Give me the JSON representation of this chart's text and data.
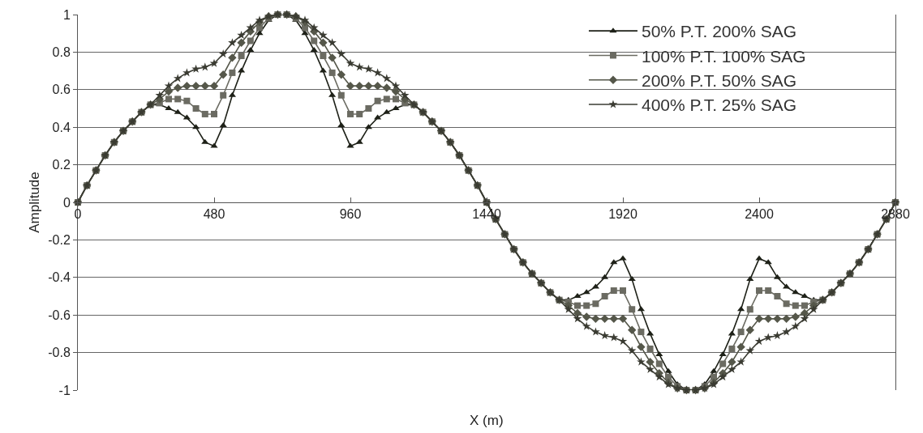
{
  "chart_data": {
    "type": "line",
    "xlabel": "X (m)",
    "ylabel": "Amplitude",
    "x": [
      0,
      32,
      64,
      96,
      128,
      160,
      192,
      224,
      256,
      288,
      320,
      352,
      384,
      416,
      448,
      480,
      512,
      544,
      576,
      608,
      640,
      672,
      704,
      736,
      768,
      800,
      832,
      864,
      896,
      928,
      960,
      992,
      1024,
      1056,
      1088,
      1120,
      1152,
      1184,
      1216,
      1248,
      1280,
      1312,
      1344,
      1376,
      1408,
      1440,
      1472,
      1504,
      1536,
      1568,
      1600,
      1632,
      1664,
      1696,
      1728,
      1760,
      1792,
      1824,
      1856,
      1888,
      1920,
      1952,
      1984,
      2016,
      2048,
      2080,
      2112,
      2144,
      2176,
      2208,
      2240,
      2272,
      2304,
      2336,
      2368,
      2400,
      2432,
      2464,
      2496,
      2528,
      2560,
      2592,
      2624,
      2656,
      2688,
      2720,
      2752,
      2784,
      2816,
      2848,
      2880
    ],
    "series": [
      {
        "name": "50% P.T. 200% SAG",
        "color": "#1e2118",
        "marker": "triangle",
        "values": [
          0,
          0.09,
          0.17,
          0.25,
          0.32,
          0.38,
          0.43,
          0.48,
          0.52,
          0.52,
          0.5,
          0.48,
          0.45,
          0.4,
          0.32,
          0.3,
          0.41,
          0.57,
          0.7,
          0.81,
          0.9,
          0.97,
          1.0,
          1.0,
          0.97,
          0.9,
          0.81,
          0.7,
          0.57,
          0.41,
          0.3,
          0.32,
          0.4,
          0.45,
          0.48,
          0.5,
          0.52,
          0.52,
          0.48,
          0.43,
          0.38,
          0.32,
          0.25,
          0.17,
          0.09,
          0,
          -0.09,
          -0.17,
          -0.25,
          -0.32,
          -0.38,
          -0.43,
          -0.48,
          -0.52,
          -0.52,
          -0.5,
          -0.48,
          -0.45,
          -0.4,
          -0.32,
          -0.3,
          -0.41,
          -0.57,
          -0.7,
          -0.81,
          -0.9,
          -0.97,
          -1.0,
          -1.0,
          -0.97,
          -0.9,
          -0.81,
          -0.7,
          -0.57,
          -0.41,
          -0.3,
          -0.32,
          -0.4,
          -0.45,
          -0.48,
          -0.5,
          -0.52,
          -0.52,
          -0.48,
          -0.43,
          -0.38,
          -0.32,
          -0.25,
          -0.17,
          -0.09,
          0
        ]
      },
      {
        "name": "100% P.T. 100% SAG",
        "color": "#6b6b62",
        "marker": "square",
        "values": [
          0,
          0.09,
          0.17,
          0.25,
          0.32,
          0.38,
          0.43,
          0.48,
          0.52,
          0.53,
          0.55,
          0.55,
          0.54,
          0.5,
          0.47,
          0.47,
          0.57,
          0.69,
          0.78,
          0.86,
          0.93,
          0.98,
          1.0,
          1.0,
          0.98,
          0.93,
          0.86,
          0.78,
          0.69,
          0.57,
          0.47,
          0.47,
          0.5,
          0.54,
          0.55,
          0.55,
          0.53,
          0.52,
          0.48,
          0.43,
          0.38,
          0.32,
          0.25,
          0.17,
          0.09,
          0,
          -0.09,
          -0.17,
          -0.25,
          -0.32,
          -0.38,
          -0.43,
          -0.48,
          -0.52,
          -0.53,
          -0.55,
          -0.55,
          -0.54,
          -0.5,
          -0.47,
          -0.47,
          -0.57,
          -0.69,
          -0.78,
          -0.86,
          -0.93,
          -0.98,
          -1.0,
          -1.0,
          -0.98,
          -0.93,
          -0.86,
          -0.78,
          -0.69,
          -0.57,
          -0.47,
          -0.47,
          -0.5,
          -0.54,
          -0.55,
          -0.55,
          -0.53,
          -0.52,
          -0.48,
          -0.43,
          -0.38,
          -0.32,
          -0.25,
          -0.17,
          -0.09,
          0
        ]
      },
      {
        "name": "200% P.T. 50% SAG",
        "color": "#55574a",
        "marker": "diamond",
        "values": [
          0,
          0.09,
          0.17,
          0.25,
          0.32,
          0.38,
          0.43,
          0.48,
          0.52,
          0.55,
          0.59,
          0.61,
          0.62,
          0.62,
          0.62,
          0.62,
          0.68,
          0.77,
          0.85,
          0.91,
          0.96,
          0.99,
          1.0,
          1.0,
          0.99,
          0.96,
          0.91,
          0.85,
          0.77,
          0.68,
          0.62,
          0.62,
          0.62,
          0.62,
          0.61,
          0.59,
          0.55,
          0.52,
          0.48,
          0.43,
          0.38,
          0.32,
          0.25,
          0.17,
          0.09,
          0,
          -0.09,
          -0.17,
          -0.25,
          -0.32,
          -0.38,
          -0.43,
          -0.48,
          -0.52,
          -0.55,
          -0.59,
          -0.61,
          -0.62,
          -0.62,
          -0.62,
          -0.62,
          -0.68,
          -0.77,
          -0.85,
          -0.91,
          -0.96,
          -0.99,
          -1.0,
          -1.0,
          -0.99,
          -0.96,
          -0.91,
          -0.85,
          -0.77,
          -0.68,
          -0.62,
          -0.62,
          -0.62,
          -0.62,
          -0.61,
          -0.59,
          -0.55,
          -0.52,
          -0.48,
          -0.43,
          -0.38,
          -0.32,
          -0.25,
          -0.17,
          -0.09,
          0
        ]
      },
      {
        "name": "400% P.T. 25% SAG",
        "color": "#3a3b32",
        "marker": "star",
        "values": [
          0,
          0.09,
          0.17,
          0.25,
          0.32,
          0.38,
          0.43,
          0.48,
          0.52,
          0.57,
          0.62,
          0.66,
          0.69,
          0.71,
          0.72,
          0.74,
          0.79,
          0.85,
          0.89,
          0.93,
          0.97,
          0.99,
          1.0,
          1.0,
          0.99,
          0.97,
          0.93,
          0.89,
          0.85,
          0.79,
          0.74,
          0.72,
          0.71,
          0.69,
          0.66,
          0.62,
          0.57,
          0.52,
          0.48,
          0.43,
          0.38,
          0.32,
          0.25,
          0.17,
          0.09,
          0,
          -0.09,
          -0.17,
          -0.25,
          -0.32,
          -0.38,
          -0.43,
          -0.48,
          -0.52,
          -0.57,
          -0.62,
          -0.66,
          -0.69,
          -0.71,
          -0.72,
          -0.74,
          -0.79,
          -0.85,
          -0.89,
          -0.93,
          -0.97,
          -0.99,
          -1.0,
          -1.0,
          -0.99,
          -0.97,
          -0.93,
          -0.89,
          -0.85,
          -0.79,
          -0.74,
          -0.72,
          -0.71,
          -0.69,
          -0.66,
          -0.62,
          -0.57,
          -0.52,
          -0.48,
          -0.43,
          -0.38,
          -0.32,
          -0.25,
          -0.17,
          -0.09,
          0
        ]
      }
    ],
    "xlim": [
      0,
      2880
    ],
    "xticks": [
      0,
      480,
      960,
      1440,
      1920,
      2400,
      2880
    ],
    "ylim": [
      -1,
      1
    ],
    "yticks": [
      -1,
      -0.8,
      -0.6,
      -0.4,
      -0.2,
      0,
      0.2,
      0.4,
      0.6,
      0.8,
      1
    ],
    "grid": "y",
    "legend": "top right"
  }
}
